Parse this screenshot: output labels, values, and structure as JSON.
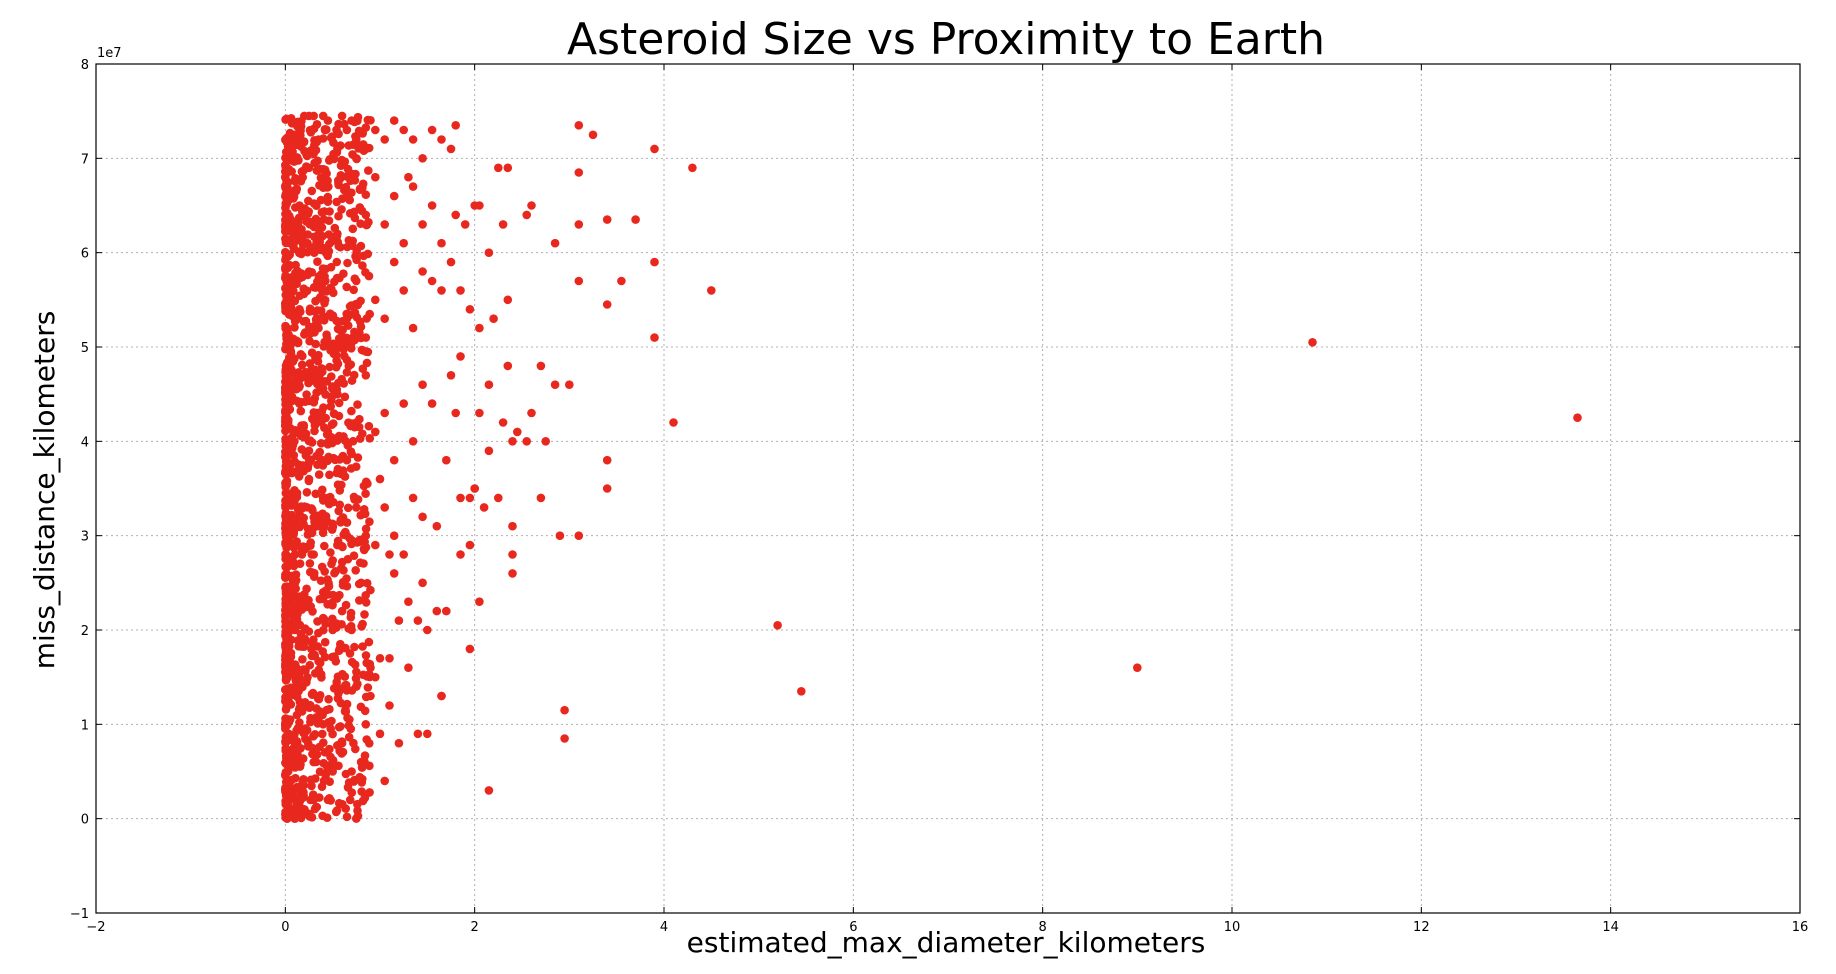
{
  "chart_data": {
    "type": "scatter",
    "title": "Asteroid Size vs Proximity to Earth",
    "xlabel": "estimated_max_diameter_kilometers",
    "ylabel": "miss_distance_kilometers",
    "y_offset_label": "1e7",
    "xlim": [
      -2,
      16
    ],
    "ylim": [
      -1,
      8
    ],
    "x_ticks": [
      -2,
      0,
      2,
      4,
      6,
      8,
      10,
      12,
      14,
      16
    ],
    "y_ticks": [
      -1,
      0,
      1,
      2,
      3,
      4,
      5,
      6,
      7,
      8
    ],
    "x_tick_labels": [
      "−2",
      "0",
      "2",
      "4",
      "6",
      "8",
      "10",
      "12",
      "14",
      "16"
    ],
    "y_tick_labels": [
      "−1",
      "0",
      "1",
      "2",
      "3",
      "4",
      "5",
      "6",
      "7",
      "8"
    ],
    "grid": true,
    "marker_color": "#e8281e",
    "y_unit_multiplier": 10000000,
    "series": [
      {
        "points": [
          [
            0.02,
            0.0
          ],
          [
            0.05,
            0.02
          ],
          [
            0.08,
            0.05
          ],
          [
            0.1,
            0.0
          ],
          [
            0.15,
            0.03
          ],
          [
            0.2,
            0.05
          ],
          [
            0.25,
            0.05
          ],
          [
            0.3,
            0.2
          ],
          [
            0.45,
            0.2
          ],
          [
            0.03,
            0.5
          ],
          [
            0.1,
            0.8
          ],
          [
            0.2,
            1.2
          ],
          [
            0.3,
            0.6
          ],
          [
            0.4,
            1.0
          ],
          [
            0.5,
            0.5
          ],
          [
            0.6,
            0.8
          ],
          [
            0.7,
            0.5
          ],
          [
            0.8,
            0.6
          ],
          [
            0.9,
            1.3
          ],
          [
            1.0,
            0.9
          ],
          [
            1.1,
            1.2
          ],
          [
            1.2,
            0.8
          ],
          [
            1.05,
            0.4
          ],
          [
            0.85,
            1.0
          ],
          [
            0.75,
            1.4
          ],
          [
            0.95,
            1.5
          ],
          [
            1.4,
            0.9
          ],
          [
            1.5,
            0.9
          ],
          [
            1.65,
            1.3
          ],
          [
            0.02,
            1.5
          ],
          [
            0.1,
            2.0
          ],
          [
            0.2,
            2.3
          ],
          [
            0.3,
            2.8
          ],
          [
            0.4,
            2.4
          ],
          [
            0.5,
            2.0
          ],
          [
            0.6,
            2.2
          ],
          [
            0.7,
            2.0
          ],
          [
            0.8,
            2.5
          ],
          [
            0.9,
            1.6
          ],
          [
            1.0,
            1.7
          ],
          [
            1.1,
            1.7
          ],
          [
            1.2,
            2.1
          ],
          [
            1.3,
            2.3
          ],
          [
            1.4,
            2.1
          ],
          [
            1.5,
            2.0
          ],
          [
            1.6,
            2.2
          ],
          [
            1.7,
            2.2
          ],
          [
            1.3,
            1.6
          ],
          [
            1.45,
            2.5
          ],
          [
            1.15,
            2.6
          ],
          [
            0.05,
            3.0
          ],
          [
            0.15,
            3.3
          ],
          [
            0.25,
            3.6
          ],
          [
            0.35,
            3.1
          ],
          [
            0.45,
            3.4
          ],
          [
            0.55,
            2.9
          ],
          [
            0.65,
            3.0
          ],
          [
            0.75,
            3.3
          ],
          [
            0.85,
            3.0
          ],
          [
            0.95,
            2.9
          ],
          [
            1.05,
            3.3
          ],
          [
            1.15,
            3.0
          ],
          [
            1.25,
            2.8
          ],
          [
            1.35,
            3.4
          ],
          [
            1.45,
            3.2
          ],
          [
            1.6,
            3.1
          ],
          [
            1.85,
            2.8
          ],
          [
            1.95,
            2.9
          ],
          [
            1.85,
            3.4
          ],
          [
            2.0,
            3.5
          ],
          [
            2.1,
            3.3
          ],
          [
            2.25,
            3.4
          ],
          [
            2.4,
            3.1
          ],
          [
            2.4,
            2.8
          ],
          [
            2.4,
            2.6
          ],
          [
            2.05,
            2.3
          ],
          [
            1.95,
            1.8
          ],
          [
            1.65,
            1.3
          ],
          [
            1.1,
            2.8
          ],
          [
            1.0,
            3.6
          ],
          [
            0.05,
            4.0
          ],
          [
            0.15,
            4.4
          ],
          [
            0.25,
            3.9
          ],
          [
            0.35,
            4.6
          ],
          [
            0.45,
            4.1
          ],
          [
            0.55,
            4.5
          ],
          [
            0.65,
            3.8
          ],
          [
            0.75,
            4.2
          ],
          [
            0.85,
            4.7
          ],
          [
            0.95,
            4.1
          ],
          [
            1.05,
            4.3
          ],
          [
            1.15,
            3.8
          ],
          [
            1.25,
            4.4
          ],
          [
            1.35,
            4.0
          ],
          [
            1.45,
            4.6
          ],
          [
            1.55,
            4.4
          ],
          [
            1.7,
            3.8
          ],
          [
            1.8,
            4.3
          ],
          [
            1.75,
            4.7
          ],
          [
            1.85,
            4.9
          ],
          [
            2.05,
            4.3
          ],
          [
            2.15,
            4.6
          ],
          [
            2.3,
            4.2
          ],
          [
            2.4,
            4.0
          ],
          [
            2.45,
            4.1
          ],
          [
            2.55,
            4.0
          ],
          [
            2.6,
            4.3
          ],
          [
            2.75,
            4.0
          ],
          [
            2.7,
            3.4
          ],
          [
            2.9,
            3.0
          ],
          [
            2.85,
            4.6
          ],
          [
            3.0,
            4.6
          ],
          [
            2.7,
            4.8
          ],
          [
            2.35,
            4.8
          ],
          [
            2.15,
            3.9
          ],
          [
            1.95,
            3.4
          ],
          [
            2.0,
            3.5
          ],
          [
            0.05,
            5.0
          ],
          [
            0.15,
            5.4
          ],
          [
            0.25,
            5.8
          ],
          [
            0.35,
            5.2
          ],
          [
            0.45,
            5.6
          ],
          [
            0.55,
            5.0
          ],
          [
            0.65,
            5.3
          ],
          [
            0.75,
            5.7
          ],
          [
            0.85,
            5.1
          ],
          [
            0.95,
            5.5
          ],
          [
            1.05,
            5.3
          ],
          [
            1.15,
            5.9
          ],
          [
            1.25,
            5.6
          ],
          [
            1.35,
            5.2
          ],
          [
            1.45,
            5.8
          ],
          [
            1.55,
            5.7
          ],
          [
            1.65,
            5.6
          ],
          [
            1.75,
            5.9
          ],
          [
            1.85,
            5.6
          ],
          [
            1.95,
            5.4
          ],
          [
            2.05,
            5.2
          ],
          [
            2.2,
            5.3
          ],
          [
            2.35,
            5.5
          ],
          [
            2.15,
            6.0
          ],
          [
            2.0,
            6.5
          ],
          [
            0.05,
            6.1
          ],
          [
            0.15,
            6.5
          ],
          [
            0.25,
            6.9
          ],
          [
            0.35,
            6.3
          ],
          [
            0.45,
            6.7
          ],
          [
            0.55,
            6.2
          ],
          [
            0.65,
            6.6
          ],
          [
            0.75,
            7.0
          ],
          [
            0.85,
            6.4
          ],
          [
            0.95,
            6.8
          ],
          [
            1.05,
            6.3
          ],
          [
            1.15,
            6.6
          ],
          [
            1.25,
            6.1
          ],
          [
            1.35,
            6.7
          ],
          [
            1.45,
            6.3
          ],
          [
            1.55,
            6.5
          ],
          [
            1.65,
            6.1
          ],
          [
            1.8,
            6.4
          ],
          [
            1.9,
            6.3
          ],
          [
            2.05,
            6.5
          ],
          [
            2.3,
            6.3
          ],
          [
            2.55,
            6.4
          ],
          [
            2.6,
            6.5
          ],
          [
            2.85,
            6.1
          ],
          [
            2.25,
            6.9
          ],
          [
            2.35,
            6.9
          ],
          [
            0.05,
            7.1
          ],
          [
            0.15,
            7.3
          ],
          [
            0.25,
            7.45
          ],
          [
            0.35,
            7.2
          ],
          [
            0.45,
            7.4
          ],
          [
            0.55,
            7.1
          ],
          [
            0.65,
            7.3
          ],
          [
            0.75,
            7.2
          ],
          [
            0.85,
            7.1
          ],
          [
            0.95,
            7.3
          ],
          [
            1.05,
            7.2
          ],
          [
            1.15,
            7.4
          ],
          [
            1.25,
            7.3
          ],
          [
            1.35,
            7.2
          ],
          [
            1.45,
            7.0
          ],
          [
            1.55,
            7.3
          ],
          [
            1.65,
            7.2
          ],
          [
            1.75,
            7.1
          ],
          [
            1.8,
            7.35
          ],
          [
            1.3,
            6.8
          ],
          [
            0.6,
            7.45
          ],
          [
            0.7,
            7.4
          ],
          [
            0.4,
            7.45
          ],
          [
            0.3,
            7.45
          ],
          [
            0.2,
            7.45
          ],
          [
            3.1,
            7.35
          ],
          [
            3.25,
            7.25
          ],
          [
            3.1,
            6.85
          ],
          [
            3.1,
            6.3
          ],
          [
            3.4,
            6.35
          ],
          [
            3.7,
            6.35
          ],
          [
            3.1,
            5.7
          ],
          [
            3.55,
            5.7
          ],
          [
            3.4,
            5.45
          ],
          [
            3.9,
            7.1
          ],
          [
            4.3,
            6.9
          ],
          [
            3.9,
            5.9
          ],
          [
            4.5,
            5.6
          ],
          [
            3.9,
            5.1
          ],
          [
            4.1,
            4.2
          ],
          [
            3.4,
            3.8
          ],
          [
            3.4,
            3.5
          ],
          [
            3.1,
            3.0
          ],
          [
            2.95,
            1.15
          ],
          [
            2.95,
            0.85
          ],
          [
            2.15,
            0.3
          ],
          [
            5.2,
            2.05
          ],
          [
            5.45,
            1.35
          ],
          [
            9.0,
            1.6
          ],
          [
            10.85,
            5.05
          ],
          [
            13.65,
            4.25
          ]
        ]
      }
    ]
  }
}
